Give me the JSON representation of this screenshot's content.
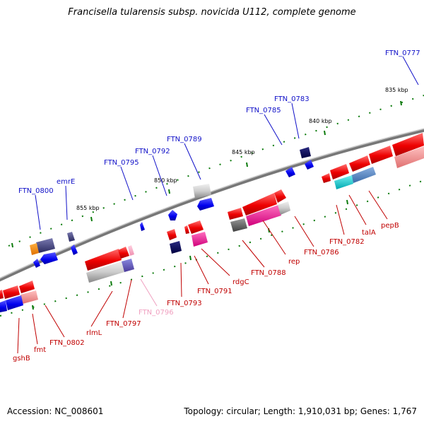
{
  "title": "Francisella tularensis subsp. novicida U112, complete genome",
  "footer": {
    "accession": "Accession: NC_008601",
    "stats": "Topology: circular; Length: 1,910,031 bp; Genes: 1,767"
  },
  "scale_labels": [
    "835 kbp",
    "840 kbp",
    "845 kbp",
    "850 kbp",
    "855 kbp"
  ],
  "genes_top": [
    "FTN_0777",
    "FTN_0783",
    "FTN_0785",
    "FTN_0789",
    "FTN_0792",
    "FTN_0795",
    "emrE",
    "FTN_0800"
  ],
  "genes_bottom": [
    "pepB",
    "talA",
    "FTN_0782",
    "FTN_0786",
    "rep",
    "FTN_0788",
    "rdgC",
    "FTN_0791",
    "FTN_0793",
    "FTN_0796",
    "FTN_0797",
    "rlmL",
    "FTN_0802",
    "fmt",
    "gshB"
  ],
  "colors": {
    "backbone": "#808080",
    "top_label": "#1010c8",
    "bottom_label": "#c00000",
    "faint_label": "#f0a0c0",
    "tick": "#0a7a0a",
    "forward_gene": "#ff0000",
    "reverse_gene": "#0000ff"
  }
}
